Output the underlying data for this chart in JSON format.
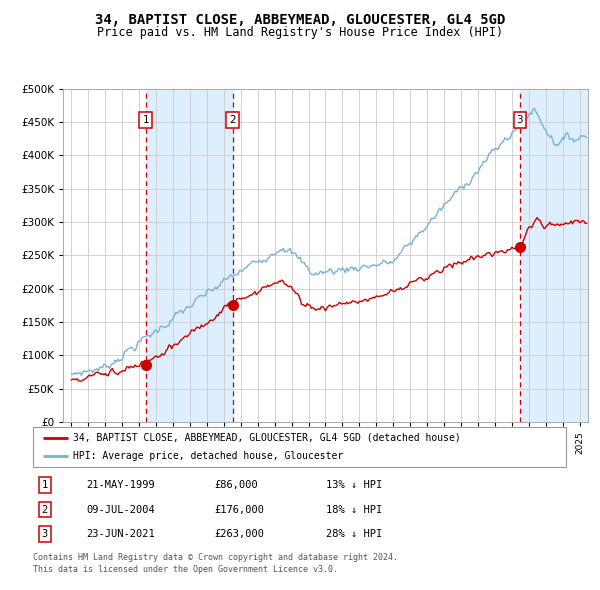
{
  "title": "34, BAPTIST CLOSE, ABBEYMEAD, GLOUCESTER, GL4 5GD",
  "subtitle": "Price paid vs. HM Land Registry's House Price Index (HPI)",
  "title_fontsize": 10,
  "subtitle_fontsize": 8.5,
  "legend_line1": "34, BAPTIST CLOSE, ABBEYMEAD, GLOUCESTER, GL4 5GD (detached house)",
  "legend_line2": "HPI: Average price, detached house, Gloucester",
  "transactions": [
    {
      "label": "1",
      "date_num": 1999.38,
      "price": 86000,
      "date_str": "21-MAY-1999",
      "pct": "13%",
      "dir": "↓"
    },
    {
      "label": "2",
      "date_num": 2004.52,
      "price": 176000,
      "date_str": "09-JUL-2004",
      "pct": "18%",
      "dir": "↓"
    },
    {
      "label": "3",
      "date_num": 2021.48,
      "price": 263000,
      "date_str": "23-JUN-2021",
      "pct": "28%",
      "dir": "↓"
    }
  ],
  "red_color": "#cc0000",
  "blue_color": "#7ab0d4",
  "shade_color": "#ddeeff",
  "dashed_color": "#cc0000",
  "grid_color": "#cccccc",
  "bg_color": "#ffffff",
  "ylim": [
    0,
    500000
  ],
  "yticks": [
    0,
    50000,
    100000,
    150000,
    200000,
    250000,
    300000,
    350000,
    400000,
    450000,
    500000
  ],
  "xlim_start": 1994.5,
  "xlim_end": 2025.5,
  "footer1": "Contains HM Land Registry data © Crown copyright and database right 2024.",
  "footer2": "This data is licensed under the Open Government Licence v3.0."
}
